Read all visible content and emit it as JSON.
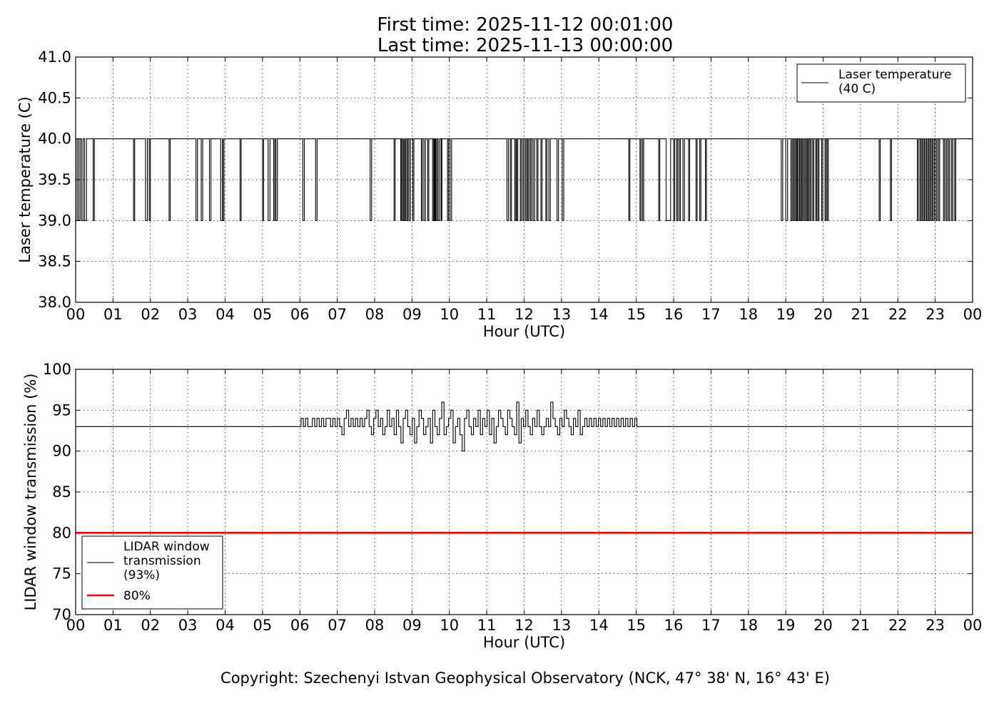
{
  "titles": {
    "line1": "First time: 2025-11-12 00:01:00",
    "line2": "Last time: 2025-11-13 00:00:00"
  },
  "copyright": "Copyright: Szechenyi Istvan Geophysical Observatory (NCK, 47° 38' N, 16° 43' E)",
  "chart_data": [
    {
      "type": "line",
      "xlabel": "Hour (UTC)",
      "ylabel": "Laser temperature (C)",
      "xlim": [
        0,
        24
      ],
      "ylim": [
        38.0,
        41.0
      ],
      "xticks": [
        "00",
        "01",
        "02",
        "03",
        "04",
        "05",
        "06",
        "07",
        "08",
        "09",
        "10",
        "11",
        "12",
        "13",
        "14",
        "15",
        "16",
        "17",
        "18",
        "19",
        "20",
        "21",
        "22",
        "23",
        "00"
      ],
      "yticks": [
        "38.0",
        "38.5",
        "39.0",
        "39.5",
        "40.0",
        "40.5",
        "41.0"
      ],
      "grid": true,
      "legend": {
        "placement": "upper right",
        "entries": [
          "Laser temperature\n(40 C)"
        ]
      },
      "series": [
        {
          "name": "Laser temperature\n(40 C)",
          "color": "#000000",
          "base": 40.0,
          "low": 39.0,
          "dips": [
            [
              0.0,
              0.04
            ],
            [
              0.08,
              0.12
            ],
            [
              0.16,
              0.2
            ],
            [
              0.24,
              0.29
            ],
            [
              0.47,
              0.5
            ],
            [
              1.55,
              1.58
            ],
            [
              1.87,
              1.92
            ],
            [
              1.97,
              2.0
            ],
            [
              2.5,
              2.53
            ],
            [
              3.22,
              3.26
            ],
            [
              3.36,
              3.4
            ],
            [
              3.58,
              3.62
            ],
            [
              3.88,
              3.93
            ],
            [
              3.94,
              3.97
            ],
            [
              4.4,
              4.43
            ],
            [
              5.0,
              5.03
            ],
            [
              5.15,
              5.2
            ],
            [
              5.3,
              5.33
            ],
            [
              5.36,
              5.4
            ],
            [
              6.08,
              6.12
            ],
            [
              6.42,
              6.46
            ],
            [
              7.88,
              7.92
            ],
            [
              8.52,
              8.55
            ],
            [
              8.7,
              8.72
            ],
            [
              8.75,
              8.78
            ],
            [
              8.8,
              8.83
            ],
            [
              8.86,
              8.89
            ],
            [
              8.92,
              8.96
            ],
            [
              9.02,
              9.05
            ],
            [
              9.25,
              9.28
            ],
            [
              9.32,
              9.36
            ],
            [
              9.42,
              9.45
            ],
            [
              9.55,
              9.58
            ],
            [
              9.6,
              9.62
            ],
            [
              9.64,
              9.67
            ],
            [
              9.7,
              9.74
            ],
            [
              9.78,
              9.8
            ],
            [
              9.95,
              9.98
            ],
            [
              10.02,
              10.06
            ],
            [
              11.54,
              11.58
            ],
            [
              11.63,
              11.66
            ],
            [
              11.75,
              11.78
            ],
            [
              11.8,
              11.83
            ],
            [
              11.9,
              11.93
            ],
            [
              11.97,
              12.0
            ],
            [
              12.04,
              12.07
            ],
            [
              12.1,
              12.13
            ],
            [
              12.17,
              12.2
            ],
            [
              12.24,
              12.28
            ],
            [
              12.34,
              12.37
            ],
            [
              12.45,
              12.48
            ],
            [
              12.58,
              12.61
            ],
            [
              12.66,
              12.7
            ],
            [
              12.88,
              12.92
            ],
            [
              13.02,
              13.06
            ],
            [
              14.8,
              14.83
            ],
            [
              15.1,
              15.13
            ],
            [
              15.17,
              15.2
            ],
            [
              15.6,
              15.63
            ],
            [
              15.8,
              15.92
            ],
            [
              16.0,
              16.03
            ],
            [
              16.08,
              16.11
            ],
            [
              16.15,
              16.18
            ],
            [
              16.25,
              16.29
            ],
            [
              16.4,
              16.43
            ],
            [
              16.6,
              16.63
            ],
            [
              16.7,
              16.73
            ],
            [
              16.85,
              16.88
            ],
            [
              18.88,
              18.92
            ],
            [
              19.0,
              19.05
            ],
            [
              19.14,
              19.17
            ],
            [
              19.2,
              19.23
            ],
            [
              19.26,
              19.29
            ],
            [
              19.31,
              19.34
            ],
            [
              19.37,
              19.4
            ],
            [
              19.42,
              19.45
            ],
            [
              19.48,
              19.51
            ],
            [
              19.54,
              19.57
            ],
            [
              19.59,
              19.62
            ],
            [
              19.65,
              19.68
            ],
            [
              19.72,
              19.75
            ],
            [
              19.8,
              19.83
            ],
            [
              19.86,
              19.89
            ],
            [
              19.96,
              19.99
            ],
            [
              20.05,
              20.08
            ],
            [
              20.11,
              20.14
            ],
            [
              21.5,
              21.53
            ],
            [
              21.8,
              21.83
            ],
            [
              22.52,
              22.55
            ],
            [
              22.59,
              22.62
            ],
            [
              22.65,
              22.68
            ],
            [
              22.71,
              22.74
            ],
            [
              22.77,
              22.8
            ],
            [
              22.83,
              22.86
            ],
            [
              22.89,
              22.92
            ],
            [
              22.95,
              22.98
            ],
            [
              23.02,
              23.05
            ],
            [
              23.09,
              23.12
            ],
            [
              23.22,
              23.25
            ],
            [
              23.29,
              23.32
            ],
            [
              23.36,
              23.39
            ],
            [
              23.44,
              23.47
            ],
            [
              23.52,
              23.55
            ]
          ]
        }
      ]
    },
    {
      "type": "line",
      "xlabel": "Hour (UTC)",
      "ylabel": "LIDAR window transmission (%)",
      "xlim": [
        0,
        24
      ],
      "ylim": [
        70,
        100
      ],
      "xticks": [
        "00",
        "01",
        "02",
        "03",
        "04",
        "05",
        "06",
        "07",
        "08",
        "09",
        "10",
        "11",
        "12",
        "13",
        "14",
        "15",
        "16",
        "17",
        "18",
        "19",
        "20",
        "21",
        "22",
        "23",
        "00"
      ],
      "yticks": [
        "70",
        "75",
        "80",
        "85",
        "90",
        "95",
        "100"
      ],
      "grid": true,
      "legend": {
        "placement": "lower left",
        "entries": [
          "LIDAR window\ntransmission\n(93%)",
          "80%"
        ]
      },
      "series": [
        {
          "name": "LIDAR window\ntransmission\n(93%)",
          "color": "#000000",
          "baseline": 93,
          "active_range": [
            5.97,
            15.08
          ],
          "values_active": [
            93,
            94,
            93,
            94,
            93,
            93,
            94,
            93,
            94,
            93,
            94,
            93,
            94,
            94,
            93,
            94,
            93,
            94,
            93,
            92,
            94,
            95,
            93,
            94,
            93,
            94,
            93,
            94,
            93,
            94,
            95,
            93,
            92,
            94,
            95,
            93,
            94,
            92,
            93,
            95,
            93,
            94,
            92,
            95,
            93,
            91,
            94,
            95,
            93,
            92,
            94,
            91,
            93,
            95,
            94,
            92,
            93,
            94,
            91,
            95,
            93,
            92,
            94,
            96,
            92,
            93,
            94,
            95,
            91,
            93,
            94,
            92,
            90,
            94,
            95,
            93,
            92,
            94,
            93,
            95,
            92,
            94,
            93,
            95,
            92,
            94,
            91,
            93,
            95,
            94,
            93,
            92,
            95,
            94,
            93,
            92,
            96,
            91,
            94,
            93,
            95,
            93,
            92,
            94,
            93,
            95,
            93,
            92,
            93,
            94,
            93,
            96,
            94,
            93,
            92,
            94,
            93,
            95,
            94,
            93,
            92,
            94,
            93,
            95,
            92,
            93,
            94,
            93,
            94,
            93,
            94,
            93,
            94,
            93,
            94,
            93,
            94,
            93,
            94,
            93,
            94,
            93,
            94,
            93,
            94,
            93,
            94,
            93,
            94,
            93
          ]
        },
        {
          "name": "80%",
          "color": "#ff0000",
          "value": 80
        }
      ]
    }
  ]
}
